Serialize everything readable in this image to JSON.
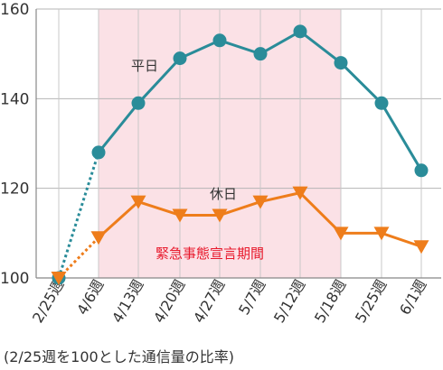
{
  "chart_data": {
    "type": "line",
    "title": "",
    "xlabel": "",
    "ylabel": "",
    "categories": [
      "2/25週",
      "4/6週",
      "4/13週",
      "4/20週",
      "4/27週",
      "5/7週",
      "5/12週",
      "5/18週",
      "5/25週",
      "6/1週"
    ],
    "y_ticks": [
      100,
      120,
      140,
      160
    ],
    "ylim": [
      100,
      160
    ],
    "grid": true,
    "series": [
      {
        "name": "平日",
        "color": "#2a8c99",
        "marker": "circle",
        "values": [
          100,
          128,
          139,
          149,
          153,
          150,
          155,
          148,
          139,
          124
        ]
      },
      {
        "name": "休日",
        "color": "#ee7d1b",
        "marker": "triangle-down",
        "values": [
          100,
          109,
          117,
          114,
          114,
          117,
          119,
          110,
          110,
          107
        ]
      }
    ],
    "first_segment_style": "dotted",
    "shaded_region": {
      "label": "緊急事態宣言期間",
      "from": "4/6週",
      "to": "5/18週",
      "color": "#fbe1e6"
    },
    "note": "(2/25週を100とした通信量の比率)"
  }
}
